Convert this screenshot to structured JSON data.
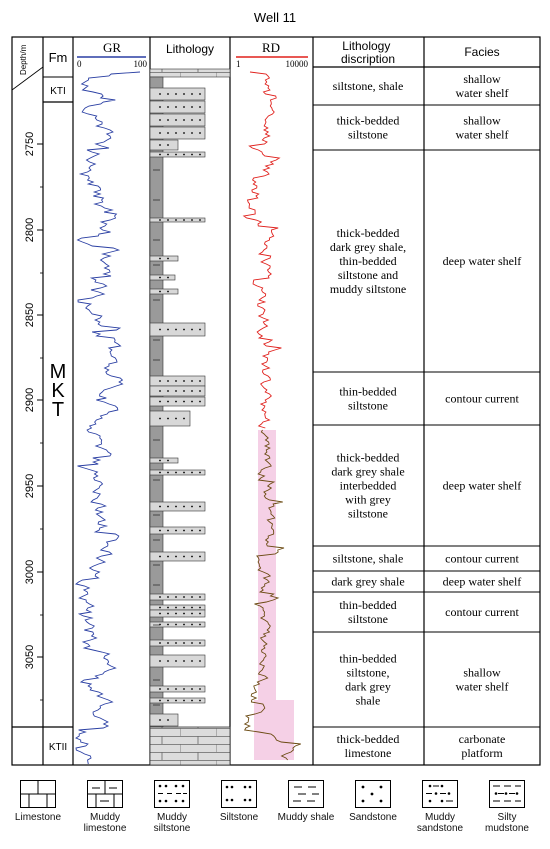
{
  "title": "Well 11",
  "headers": {
    "depth": "Depth/m",
    "fm": "Fm",
    "gr": "GR",
    "gr_min": "0",
    "gr_max": "100",
    "lithology": "Lithology",
    "rd": "RD",
    "rd_min": "1",
    "rd_max": "10000",
    "lith_desc": [
      "Lithology",
      "discription"
    ],
    "facies": "Facies"
  },
  "depth_ticks": [
    "2750",
    "2800",
    "2850",
    "2900",
    "2950",
    "3000",
    "3050"
  ],
  "formations": {
    "kti": "KTI",
    "mkt": [
      "M",
      "K",
      "T"
    ],
    "ktii": "KTII"
  },
  "intervals": [
    {
      "desc": [
        "siltstone, shale"
      ],
      "facies": [
        "shallow",
        "water shelf"
      ]
    },
    {
      "desc": [
        "thick-bedded",
        "siltstone"
      ],
      "facies": [
        "shallow",
        "water shelf"
      ]
    },
    {
      "desc": [
        "thick-bedded",
        "dark grey shale,",
        "thin-bedded",
        "siltstone and",
        "muddy siltstone"
      ],
      "facies": [
        "deep water shelf"
      ]
    },
    {
      "desc": [
        "thin-bedded",
        "siltstone"
      ],
      "facies": [
        "contour current"
      ]
    },
    {
      "desc": [
        "thick-bedded",
        "dark grey shale",
        "interbedded",
        "with grey",
        "siltstone"
      ],
      "facies": [
        "deep water shelf"
      ]
    },
    {
      "desc": [
        "siltstone, shale"
      ],
      "facies": [
        "contour current"
      ]
    },
    {
      "desc": [
        "dark grey shale"
      ],
      "facies": [
        "deep water shelf"
      ]
    },
    {
      "desc": [
        "thin-bedded",
        "siltstone"
      ],
      "facies": [
        "contour current"
      ]
    },
    {
      "desc": [
        "thin-bedded",
        "siltstone,",
        "dark grey",
        "shale"
      ],
      "facies": [
        "shallow",
        "water shelf"
      ]
    },
    {
      "desc": [
        "thick-bedded",
        "limestone"
      ],
      "facies": [
        "carbonate",
        "platform"
      ]
    }
  ],
  "legend": [
    {
      "label": [
        "Limestone"
      ],
      "icon": "limestone-swatch"
    },
    {
      "label": [
        "Muddy",
        "limestone"
      ],
      "icon": "muddy-limestone-swatch"
    },
    {
      "label": [
        "Muddy",
        "siltstone"
      ],
      "icon": "muddy-siltstone-swatch"
    },
    {
      "label": [
        "Siltstone"
      ],
      "icon": "siltstone-swatch"
    },
    {
      "label": [
        "Muddy shale"
      ],
      "icon": "muddy-shale-swatch"
    },
    {
      "label": [
        "Sandstone"
      ],
      "icon": "sandstone-swatch"
    },
    {
      "label": [
        "Muddy",
        "sandstone"
      ],
      "icon": "muddy-sandstone-swatch"
    },
    {
      "label": [
        "Silty",
        "mudstone"
      ],
      "icon": "silty-mudstone-swatch"
    }
  ],
  "colors": {
    "gr_curve": "#2a3fa3",
    "rd_curve": "#e0201c",
    "rd_curve_lower": "#6b4a12",
    "rd_highlight": "#f5d0e6",
    "lith_fill": "#d8d8d8",
    "lith_dark": "#9a9a9a"
  }
}
